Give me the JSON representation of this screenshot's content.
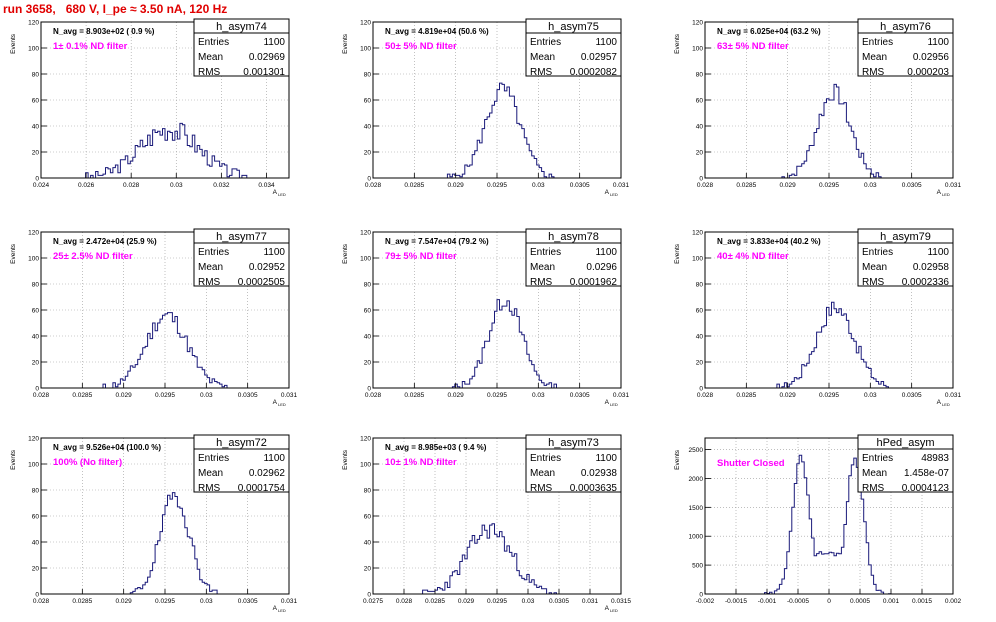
{
  "run_title": "run 3658,   680 V, I_pe ≈ 3.50 nA, 120 Hz",
  "colors": {
    "hist_line": "#1a1a7a",
    "filter_text": "#ff00ff",
    "title": "#e00000",
    "grid": "#999999"
  },
  "chart_data": [
    {
      "type": "histogram",
      "name": "h_asym74",
      "navg": "N_avg = 8.903e+02 ( 0.9 %)",
      "filter": "1± 0.1% ND filter",
      "stats": {
        "Entries": "1100",
        "Mean": "0.02969",
        "RMS": "0.001301"
      },
      "xlabel": "A",
      "xlabel_sub": "LED",
      "ylabel": "Events",
      "xlim": [
        0.024,
        0.035
      ],
      "ylim": [
        0,
        120
      ],
      "xticks": [
        "0.024",
        "0.026",
        "0.028",
        "0.03",
        "0.032",
        "0.034"
      ],
      "xtick_vals": [
        0.024,
        0.026,
        0.028,
        0.03,
        0.032,
        0.034
      ],
      "yticks": [
        0,
        20,
        40,
        60,
        80,
        100,
        120
      ],
      "gen": {
        "kind": "gauss",
        "mu": 0.02969,
        "sigma": 0.0013,
        "peak": 38,
        "noise": 8,
        "seed": 3,
        "bins": 100
      }
    },
    {
      "type": "histogram",
      "name": "h_asym75",
      "navg": "N_avg = 4.819e+04 (50.6 %)",
      "filter": "50± 5% ND filter",
      "stats": {
        "Entries": "1100",
        "Mean": "0.02957",
        "RMS": "0.0002082"
      },
      "xlabel": "A",
      "xlabel_sub": "LED",
      "ylabel": "Events",
      "xlim": [
        0.028,
        0.031
      ],
      "ylim": [
        0,
        120
      ],
      "xticks": [
        "0.028",
        "0.0285",
        "0.029",
        "0.0295",
        "0.03",
        "0.0305",
        "0.031"
      ],
      "xtick_vals": [
        0.028,
        0.0285,
        0.029,
        0.0295,
        0.03,
        0.0305,
        0.031
      ],
      "yticks": [
        0,
        20,
        40,
        60,
        80,
        100,
        120
      ],
      "gen": {
        "kind": "gauss",
        "mu": 0.02957,
        "sigma": 0.00021,
        "peak": 68,
        "noise": 6,
        "seed": 5,
        "bins": 100
      }
    },
    {
      "type": "histogram",
      "name": "h_asym76",
      "navg": "N_avg = 6.025e+04 (63.2 %)",
      "filter": "63± 5% ND filter",
      "stats": {
        "Entries": "1100",
        "Mean": "0.02956",
        "RMS": "0.000203"
      },
      "xlabel": "A",
      "xlabel_sub": "LED",
      "ylabel": "Events",
      "xlim": [
        0.028,
        0.031
      ],
      "ylim": [
        0,
        120
      ],
      "xticks": [
        "0.028",
        "0.0285",
        "0.029",
        "0.0295",
        "0.03",
        "0.0305",
        "0.031"
      ],
      "xtick_vals": [
        0.028,
        0.0285,
        0.029,
        0.0295,
        0.03,
        0.0305,
        0.031
      ],
      "yticks": [
        0,
        20,
        40,
        60,
        80,
        100,
        120
      ],
      "gen": {
        "kind": "gauss",
        "mu": 0.02956,
        "sigma": 0.0002,
        "peak": 66,
        "noise": 6,
        "seed": 7,
        "bins": 100
      }
    },
    {
      "type": "histogram",
      "name": "h_asym77",
      "navg": "N_avg = 2.472e+04 (25.9 %)",
      "filter": "25± 2.5% ND filter",
      "stats": {
        "Entries": "1100",
        "Mean": "0.02952",
        "RMS": "0.0002505"
      },
      "xlabel": "A",
      "xlabel_sub": "LED",
      "ylabel": "Events",
      "xlim": [
        0.028,
        0.031
      ],
      "ylim": [
        0,
        120
      ],
      "xticks": [
        "0.028",
        "0.0285",
        "0.029",
        "0.0295",
        "0.03",
        "0.0305",
        "0.031"
      ],
      "xtick_vals": [
        0.028,
        0.0285,
        0.029,
        0.0295,
        0.03,
        0.0305,
        0.031
      ],
      "yticks": [
        0,
        20,
        40,
        60,
        80,
        100,
        120
      ],
      "gen": {
        "kind": "gauss",
        "mu": 0.02952,
        "sigma": 0.00025,
        "peak": 56,
        "noise": 6,
        "seed": 11,
        "bins": 100
      }
    },
    {
      "type": "histogram",
      "name": "h_asym78",
      "navg": "N_avg = 7.547e+04 (79.2 %)",
      "filter": "79± 5% ND filter",
      "stats": {
        "Entries": "1100",
        "Mean": "0.0296",
        "RMS": "0.0001962"
      },
      "xlabel": "A",
      "xlabel_sub": "LED",
      "ylabel": "Events",
      "xlim": [
        0.028,
        0.031
      ],
      "ylim": [
        0,
        120
      ],
      "xticks": [
        "0.028",
        "0.0285",
        "0.029",
        "0.0295",
        "0.03",
        "0.0305",
        "0.031"
      ],
      "xtick_vals": [
        0.028,
        0.0285,
        0.029,
        0.0295,
        0.03,
        0.0305,
        0.031
      ],
      "yticks": [
        0,
        20,
        40,
        60,
        80,
        100,
        120
      ],
      "gen": {
        "kind": "gauss",
        "mu": 0.0296,
        "sigma": 0.0002,
        "peak": 68,
        "noise": 6,
        "seed": 13,
        "bins": 100
      }
    },
    {
      "type": "histogram",
      "name": "h_asym79",
      "navg": "N_avg = 3.833e+04 (40.2 %)",
      "filter": "40± 4% ND filter",
      "stats": {
        "Entries": "1100",
        "Mean": "0.02958",
        "RMS": "0.0002336"
      },
      "xlabel": "A",
      "xlabel_sub": "LED",
      "ylabel": "Events",
      "xlim": [
        0.028,
        0.031
      ],
      "ylim": [
        0,
        120
      ],
      "xticks": [
        "0.028",
        "0.0285",
        "0.029",
        "0.0295",
        "0.03",
        "0.0305",
        "0.031"
      ],
      "xtick_vals": [
        0.028,
        0.0285,
        0.029,
        0.0295,
        0.03,
        0.0305,
        0.031
      ],
      "yticks": [
        0,
        20,
        40,
        60,
        80,
        100,
        120
      ],
      "gen": {
        "kind": "gauss",
        "mu": 0.02958,
        "sigma": 0.00023,
        "peak": 62,
        "noise": 6,
        "seed": 17,
        "bins": 100
      }
    },
    {
      "type": "histogram",
      "name": "h_asym72",
      "navg": "N_avg = 9.526e+04 (100.0 %)",
      "filter": "100% (No filter)",
      "stats": {
        "Entries": "1100",
        "Mean": "0.02962",
        "RMS": "0.0001754"
      },
      "xlabel": "A",
      "xlabel_sub": "LED",
      "ylabel": "Events",
      "xlim": [
        0.028,
        0.031
      ],
      "ylim": [
        0,
        120
      ],
      "xticks": [
        "0.028",
        "0.0285",
        "0.029",
        "0.0295",
        "0.03",
        "0.0305",
        "0.031"
      ],
      "xtick_vals": [
        0.028,
        0.0285,
        0.029,
        0.0295,
        0.03,
        0.0305,
        0.031
      ],
      "yticks": [
        0,
        20,
        40,
        60,
        80,
        100,
        120
      ],
      "gen": {
        "kind": "gauss",
        "mu": 0.02962,
        "sigma": 0.000175,
        "peak": 76,
        "noise": 6,
        "seed": 19,
        "bins": 100
      }
    },
    {
      "type": "histogram",
      "name": "h_asym73",
      "navg": "N_avg = 8.985e+03 ( 9.4 %)",
      "filter": "10± 1% ND filter",
      "stats": {
        "Entries": "1100",
        "Mean": "0.02938",
        "RMS": "0.0003635"
      },
      "xlabel": "A",
      "xlabel_sub": "LED",
      "ylabel": "Events",
      "xlim": [
        0.0275,
        0.0315
      ],
      "ylim": [
        0,
        120
      ],
      "xticks": [
        "0.0275",
        "0.028",
        "0.0285",
        "0.029",
        "0.0295",
        "0.03",
        "0.0305",
        "0.031",
        "0.0315"
      ],
      "xtick_vals": [
        0.0275,
        0.028,
        0.0285,
        0.029,
        0.0295,
        0.03,
        0.0305,
        0.031,
        0.0315
      ],
      "yticks": [
        0,
        20,
        40,
        60,
        80,
        100,
        120
      ],
      "gen": {
        "kind": "gauss",
        "mu": 0.02938,
        "sigma": 0.00036,
        "peak": 50,
        "noise": 7,
        "seed": 23,
        "bins": 100
      }
    },
    {
      "type": "histogram",
      "name": "hPed_asym",
      "navg": "",
      "filter": "Shutter Closed",
      "stats": {
        "Entries": "48983",
        "Mean": "1.458e-07",
        "RMS": "0.0004123"
      },
      "xlabel": "",
      "xlabel_sub": "",
      "ylabel": "Events",
      "xlim": [
        -0.002,
        0.002
      ],
      "ylim": [
        0,
        2700
      ],
      "xticks": [
        "-0.002",
        "-0.0015",
        "-0.001",
        "-0.0005",
        "0",
        "0.0005",
        "0.001",
        "0.0015",
        "0.002"
      ],
      "xtick_vals": [
        -0.002,
        -0.0015,
        -0.001,
        -0.0005,
        0,
        0.0005,
        0.001,
        0.0015,
        0.002
      ],
      "yticks": [
        0,
        500,
        1000,
        1500,
        2000,
        2500
      ],
      "gen": {
        "kind": "double",
        "mu1": -0.00045,
        "mu2": 0.00042,
        "sigma": 0.00014,
        "peak": 2350,
        "base": 700,
        "noise": 60,
        "seed": 29,
        "bins": 100
      }
    }
  ]
}
